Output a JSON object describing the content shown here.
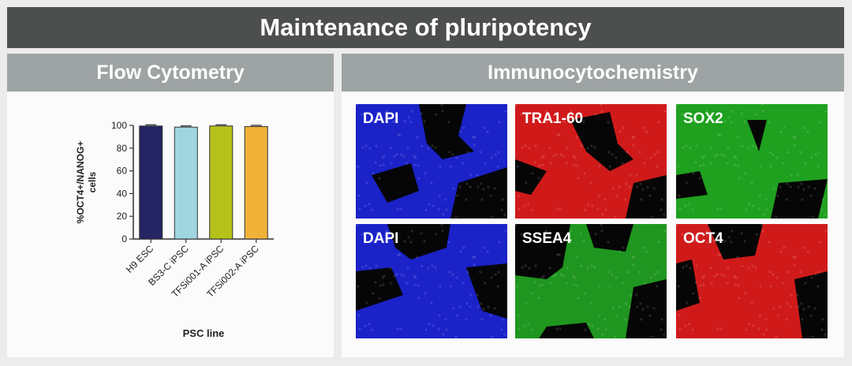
{
  "title": "Maintenance of pluripotency",
  "flow": {
    "header": "Flow Cytometry"
  },
  "immuno": {
    "header": "Immunocytochemistry",
    "tiles": [
      {
        "label": "DAPI",
        "color": "#1a22c8"
      },
      {
        "label": "TRA1-60",
        "color": "#d01a1a"
      },
      {
        "label": "SOX2",
        "color": "#1fa01f"
      },
      {
        "label": "DAPI",
        "color": "#1a22c8"
      },
      {
        "label": "SSEA4",
        "color": "#1f961f"
      },
      {
        "label": "OCT4",
        "color": "#d01a1a"
      }
    ]
  },
  "chart_data": {
    "type": "bar",
    "categories": [
      "H9 ESC",
      "BS3-C iPSC",
      "TFSi001-A iPSC",
      "TFSi002-A iPSC"
    ],
    "values": [
      99.5,
      98.5,
      99.5,
      99.0
    ],
    "colors": [
      "#252563",
      "#9fd6e0",
      "#b4c21a",
      "#f1b239"
    ],
    "error_bars": true,
    "ylabel": "%OCT4+/NANOG+\ncells",
    "xlabel": "PSC line",
    "ylim": [
      0,
      100
    ],
    "yticks": [
      0,
      20,
      40,
      60,
      80,
      100
    ],
    "grid": false
  }
}
